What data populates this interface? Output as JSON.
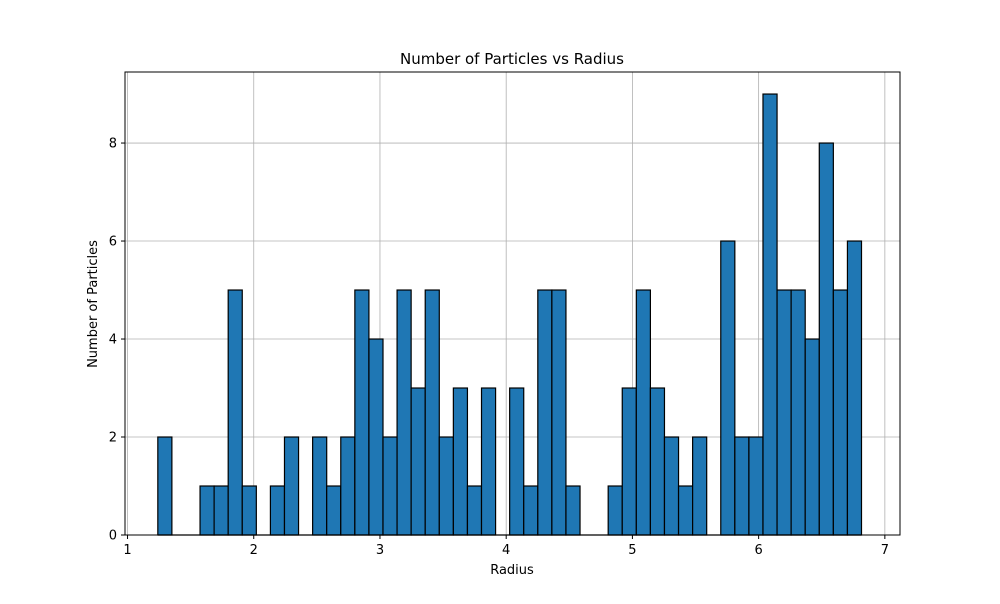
{
  "chart_data": {
    "type": "bar",
    "title": "Number of Particles vs Radius",
    "xlabel": "Radius",
    "ylabel": "Number of Particles",
    "xlim": [
      0.98,
      7.12
    ],
    "ylim": [
      0,
      9.45
    ],
    "xticks": [
      1,
      2,
      3,
      4,
      5,
      6,
      7
    ],
    "yticks": [
      0,
      2,
      4,
      6,
      8
    ],
    "grid": true,
    "bar_color": "#1f77b4",
    "edge_color": "#000000",
    "bins": {
      "start": 1.24,
      "width": 0.1115,
      "counts": [
        2,
        0,
        0,
        1,
        1,
        5,
        1,
        0,
        1,
        2,
        0,
        2,
        1,
        2,
        5,
        4,
        2,
        5,
        3,
        5,
        2,
        3,
        1,
        3,
        0,
        3,
        1,
        5,
        5,
        1,
        0,
        0,
        1,
        3,
        5,
        3,
        2,
        1,
        2,
        0,
        6,
        2,
        2,
        9,
        5,
        5,
        4,
        8,
        5,
        6
      ]
    }
  }
}
